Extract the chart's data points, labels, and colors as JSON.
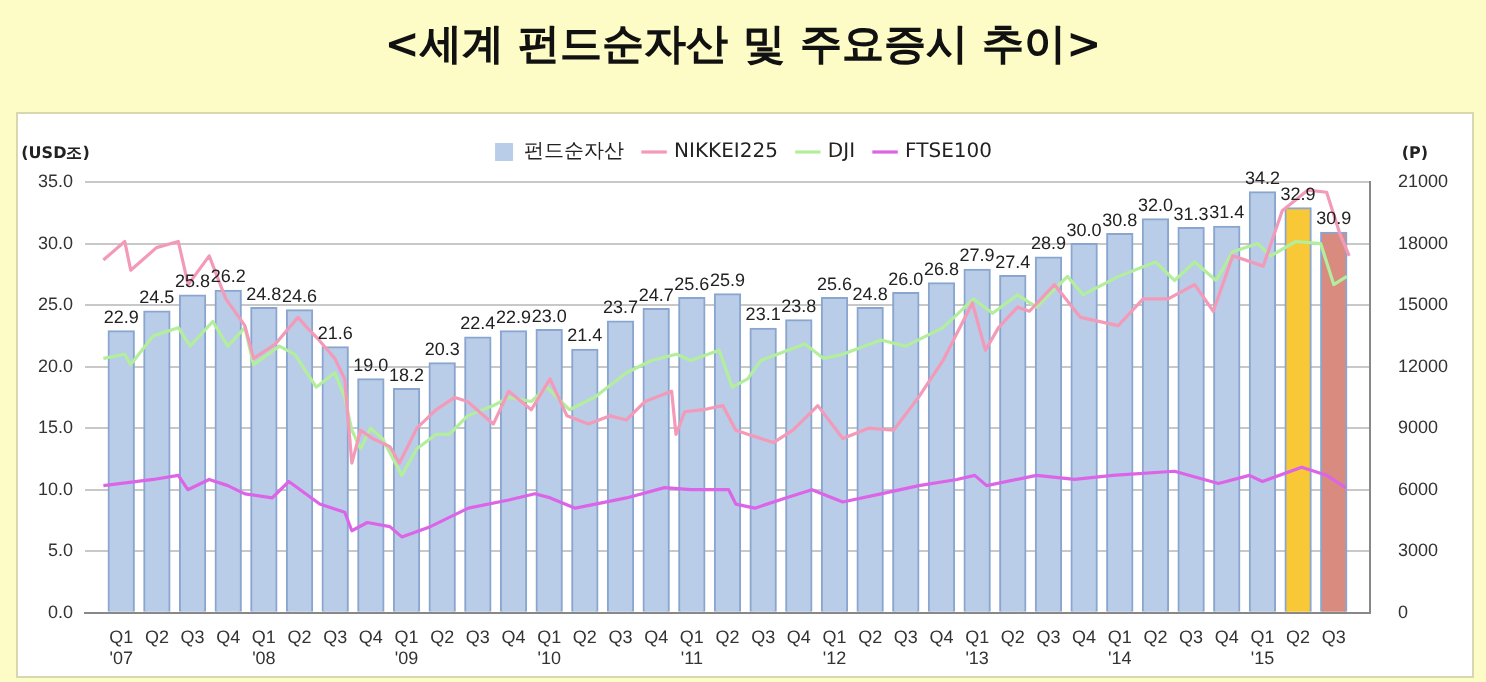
{
  "chart_data": {
    "type": "bar",
    "title": "<세계 펀드순자산 및 주요증시 추이>",
    "ylabel": "(USD조)",
    "y2label": "(P)",
    "x": [
      "2007-02-16",
      "2007-05-16",
      "2007-08-16",
      "2007-11-16",
      "2008-02-16",
      "2008-05-16",
      "2008-08-16",
      "2008-11-16",
      "2009-02-16",
      "2009-05-16",
      "2009-08-16",
      "2009-11-16",
      "2010-02-16",
      "2010-05-16",
      "2010-08-16",
      "2010-11-16",
      "2011-02-16",
      "2011-05-16",
      "2011-08-16",
      "2011-11-16",
      "2012-02-16",
      "2012-05-16",
      "2012-08-16",
      "2012-11-16",
      "2013-02-16",
      "2013-05-16",
      "2013-08-16",
      "2013-11-16",
      "2014-02-16",
      "2014-05-16",
      "2014-08-16",
      "2014-11-16",
      "2015-02-16",
      "2015-05-16",
      "2015-08-16"
    ],
    "xlim": [
      "2007-01-01",
      "2015-10-01"
    ],
    "xticks": [
      {
        "value": "2007-02-16",
        "label": "Q1\n'07"
      },
      {
        "value": "2007-05-16",
        "label": "Q2"
      },
      {
        "value": "2007-08-16",
        "label": "Q3"
      },
      {
        "value": "2007-11-16",
        "label": "Q4"
      },
      {
        "value": "2008-02-16",
        "label": "Q1\n'08"
      },
      {
        "value": "2008-05-16",
        "label": "Q2"
      },
      {
        "value": "2008-08-16",
        "label": "Q3"
      },
      {
        "value": "2008-11-16",
        "label": "Q4"
      },
      {
        "value": "2009-02-16",
        "label": "Q1\n'09"
      },
      {
        "value": "2009-05-16",
        "label": "Q2"
      },
      {
        "value": "2009-08-16",
        "label": "Q3"
      },
      {
        "value": "2009-11-16",
        "label": "Q4"
      },
      {
        "value": "2010-02-16",
        "label": "Q1\n'10"
      },
      {
        "value": "2010-05-16",
        "label": "Q2"
      },
      {
        "value": "2010-08-16",
        "label": "Q3"
      },
      {
        "value": "2010-11-16",
        "label": "Q4"
      },
      {
        "value": "2011-02-16",
        "label": "Q1\n'11"
      },
      {
        "value": "2011-05-16",
        "label": "Q2"
      },
      {
        "value": "2011-08-16",
        "label": "Q3"
      },
      {
        "value": "2011-11-16",
        "label": "Q4"
      },
      {
        "value": "2012-02-16",
        "label": "Q1\n'12"
      },
      {
        "value": "2012-05-16",
        "label": "Q2"
      },
      {
        "value": "2012-08-16",
        "label": "Q3"
      },
      {
        "value": "2012-11-16",
        "label": "Q4"
      },
      {
        "value": "2013-02-16",
        "label": "Q1\n'13"
      },
      {
        "value": "2013-05-16",
        "label": "Q2"
      },
      {
        "value": "2013-08-16",
        "label": "Q3"
      },
      {
        "value": "2013-11-16",
        "label": "Q4"
      },
      {
        "value": "2014-02-16",
        "label": "Q1\n'14"
      },
      {
        "value": "2014-05-16",
        "label": "Q2"
      },
      {
        "value": "2014-08-16",
        "label": "Q3"
      },
      {
        "value": "2014-11-16",
        "label": "Q4"
      },
      {
        "value": "2015-02-16",
        "label": "Q1\n'15"
      },
      {
        "value": "2015-05-16",
        "label": "Q2"
      },
      {
        "value": "2015-08-16",
        "label": "Q3"
      }
    ],
    "ylim": [
      0,
      35
    ],
    "yticks": [
      {
        "value": 0,
        "label": "0.0"
      },
      {
        "value": 5,
        "label": "5.0"
      },
      {
        "value": 10,
        "label": "10.0"
      },
      {
        "value": 15,
        "label": "15.0"
      },
      {
        "value": 20,
        "label": "20.0"
      },
      {
        "value": 25,
        "label": "25.0"
      },
      {
        "value": 30,
        "label": "30.0"
      },
      {
        "value": 35,
        "label": "35.0"
      }
    ],
    "y2lim": [
      0,
      21000
    ],
    "y2ticks": [
      0,
      3000,
      6000,
      9000,
      12000,
      15000,
      18000,
      21000
    ],
    "grid": "y",
    "legend": "top",
    "marker": "none",
    "line_style": "solid",
    "series": [
      {
        "name": "펀드순자산",
        "color": "#b9cde9",
        "colors": [
          "#b9cde9",
          "#b9cde9",
          "#b9cde9",
          "#b9cde9",
          "#b9cde9",
          "#b9cde9",
          "#b9cde9",
          "#b9cde9",
          "#b9cde9",
          "#b9cde9",
          "#b9cde9",
          "#b9cde9",
          "#b9cde9",
          "#b9cde9",
          "#b9cde9",
          "#b9cde9",
          "#b9cde9",
          "#b9cde9",
          "#b9cde9",
          "#b9cde9",
          "#b9cde9",
          "#b9cde9",
          "#b9cde9",
          "#b9cde9",
          "#b9cde9",
          "#b9cde9",
          "#b9cde9",
          "#b9cde9",
          "#b9cde9",
          "#b9cde9",
          "#b9cde9",
          "#b9cde9",
          "#b9cde9",
          "#f8c836",
          "#d98b80"
        ],
        "values": [
          22.9,
          24.5,
          25.8,
          26.2,
          24.8,
          24.6,
          21.6,
          19.0,
          18.2,
          20.3,
          22.4,
          22.9,
          23.0,
          21.4,
          23.7,
          24.7,
          25.6,
          25.9,
          23.1,
          23.8,
          25.6,
          24.8,
          26.0,
          26.8,
          27.9,
          27.4,
          28.9,
          30.0,
          30.8,
          32.0,
          31.3,
          31.4,
          34.2,
          32.9,
          30.9
        ],
        "value_labels": [
          "22.9",
          "24.5",
          "25.8",
          "26.2",
          "24.8",
          "24.6",
          "21.6",
          "19.0",
          "18.2",
          "20.3",
          "22.4",
          "22.9",
          "23.0",
          "21.4",
          "23.7",
          "24.7",
          "25.6",
          "25.9",
          "23.1",
          "23.8",
          "25.6",
          "24.8",
          "26.0",
          "26.8",
          "27.9",
          "27.4",
          "28.9",
          "30.0",
          "30.8",
          "32.0",
          "31.3",
          "31.4",
          "34.2",
          "32.9",
          "30.9"
        ]
      },
      {
        "name": "NIKKEI225",
        "type": "line",
        "axis": "y2",
        "color": "#f39ab8",
        "x": [
          "2007-01-01",
          "2007-02-25",
          "2007-03-10",
          "2007-05-15",
          "2007-07-10",
          "2007-08-05",
          "2007-09-28",
          "2007-11-10",
          "2007-12-28",
          "2008-01-20",
          "2008-03-15",
          "2008-05-12",
          "2008-06-05",
          "2008-07-05",
          "2008-08-15",
          "2008-09-10",
          "2008-09-28",
          "2008-10-20",
          "2008-11-20",
          "2009-01-04",
          "2009-01-28",
          "2009-03-12",
          "2009-05-01",
          "2009-06-18",
          "2009-07-20",
          "2009-09-25",
          "2009-11-04",
          "2010-01-01",
          "2010-02-18",
          "2010-04-01",
          "2010-05-25",
          "2010-07-20",
          "2010-09-01",
          "2010-10-18",
          "2010-12-25",
          "2011-01-06",
          "2011-01-28",
          "2011-03-15",
          "2011-05-04",
          "2011-06-07",
          "2011-07-07",
          "2011-09-12",
          "2011-11-01",
          "2012-01-04",
          "2012-03-07",
          "2012-05-12",
          "2012-07-15",
          "2012-09-18",
          "2012-11-20",
          "2013-02-04",
          "2013-03-07",
          "2013-04-10",
          "2013-05-28",
          "2013-06-28",
          "2013-09-01",
          "2013-11-07",
          "2014-02-12",
          "2014-04-15",
          "2014-06-18",
          "2014-08-25",
          "2014-10-12",
          "2014-12-01",
          "2015-02-18",
          "2015-04-06",
          "2015-06-10",
          "2015-07-28",
          "2015-09-01",
          "2015-09-25"
        ],
        "values": [
          17200,
          18100,
          16700,
          17800,
          18100,
          16000,
          17400,
          15300,
          14000,
          12400,
          13100,
          14400,
          13900,
          13300,
          12400,
          11400,
          7300,
          8900,
          8500,
          8100,
          7300,
          9000,
          9900,
          10500,
          10300,
          9200,
          10800,
          9900,
          11400,
          9600,
          9200,
          9600,
          9400,
          10300,
          10800,
          8700,
          9800,
          9900,
          10100,
          8900,
          8700,
          8300,
          8900,
          10100,
          8500,
          9000,
          8900,
          10500,
          12300,
          15100,
          12800,
          13900,
          14900,
          14700,
          16000,
          14400,
          14000,
          15300,
          15300,
          16000,
          14700,
          17400,
          16900,
          19600,
          20600,
          20500,
          18500,
          17400
        ]
      },
      {
        "name": "DJI",
        "type": "line",
        "axis": "y2",
        "color": "#b2ee9c",
        "x": [
          "2007-01-01",
          "2007-02-25",
          "2007-03-10",
          "2007-05-07",
          "2007-07-10",
          "2007-08-10",
          "2007-10-07",
          "2007-11-15",
          "2007-12-28",
          "2008-01-20",
          "2008-03-25",
          "2008-05-04",
          "2008-06-28",
          "2008-08-15",
          "2008-09-10",
          "2008-09-28",
          "2008-10-20",
          "2008-11-15",
          "2008-12-15",
          "2009-02-04",
          "2009-03-12",
          "2009-05-01",
          "2009-06-04",
          "2009-07-20",
          "2009-09-25",
          "2009-11-04",
          "2010-01-01",
          "2010-02-10",
          "2010-04-07",
          "2010-06-10",
          "2010-09-01",
          "2010-11-04",
          "2011-01-07",
          "2011-02-13",
          "2011-04-25",
          "2011-05-28",
          "2011-07-07",
          "2011-08-10",
          "2011-12-01",
          "2012-01-19",
          "2012-03-07",
          "2012-06-13",
          "2012-08-16",
          "2012-11-20",
          "2013-02-07",
          "2013-03-25",
          "2013-05-28",
          "2013-07-16",
          "2013-10-04",
          "2013-11-13",
          "2014-02-13",
          "2014-05-16",
          "2014-07-04",
          "2014-08-25",
          "2014-10-19",
          "2014-12-01",
          "2015-02-04",
          "2015-03-07",
          "2015-05-10",
          "2015-07-13",
          "2015-08-16",
          "2015-09-19"
        ],
        "values": [
          12400,
          12600,
          12100,
          13500,
          13900,
          13000,
          14200,
          13000,
          13900,
          12100,
          13000,
          12600,
          11000,
          11700,
          10500,
          8900,
          8000,
          9000,
          8500,
          6700,
          8000,
          8700,
          8700,
          9600,
          10100,
          10500,
          10300,
          11000,
          9900,
          10500,
          11700,
          12300,
          12600,
          12300,
          12800,
          11000,
          11400,
          12300,
          13100,
          12400,
          12600,
          13300,
          13000,
          13900,
          15300,
          14600,
          15500,
          14900,
          16400,
          15500,
          16400,
          17100,
          16200,
          17100,
          16200,
          17600,
          18000,
          17400,
          18100,
          18000,
          16000,
          16400
        ]
      },
      {
        "name": "FTSE100",
        "type": "line",
        "axis": "y2",
        "color": "#dc64e6",
        "x": [
          "2007-01-01",
          "2007-05-07",
          "2007-07-10",
          "2007-08-04",
          "2007-09-28",
          "2007-11-15",
          "2007-12-28",
          "2008-03-07",
          "2008-04-19",
          "2008-07-07",
          "2008-09-10",
          "2008-09-28",
          "2008-11-07",
          "2009-01-04",
          "2009-02-04",
          "2009-04-16",
          "2009-07-22",
          "2009-11-04",
          "2010-01-10",
          "2010-02-19",
          "2010-04-22",
          "2010-09-01",
          "2010-12-07",
          "2011-02-13",
          "2011-05-19",
          "2011-06-07",
          "2011-07-25",
          "2011-10-13",
          "2011-12-19",
          "2012-03-07",
          "2012-06-13",
          "2012-09-19",
          "2012-12-25",
          "2013-02-10",
          "2013-03-10",
          "2013-07-16",
          "2013-10-22",
          "2014-01-28",
          "2014-07-04",
          "2014-10-25",
          "2015-01-13",
          "2015-02-16",
          "2015-05-25",
          "2015-07-28",
          "2015-09-16"
        ],
        "values": [
          6200,
          6500,
          6700,
          6000,
          6500,
          6200,
          5800,
          5600,
          6400,
          5300,
          4900,
          4000,
          4400,
          4200,
          3700,
          4200,
          5100,
          5500,
          5800,
          5600,
          5100,
          5600,
          6100,
          6000,
          6000,
          5300,
          5100,
          5600,
          6000,
          5400,
          5800,
          6200,
          6500,
          6700,
          6200,
          6700,
          6500,
          6700,
          6900,
          6300,
          6700,
          6400,
          7100,
          6700,
          6100
        ]
      }
    ]
  }
}
